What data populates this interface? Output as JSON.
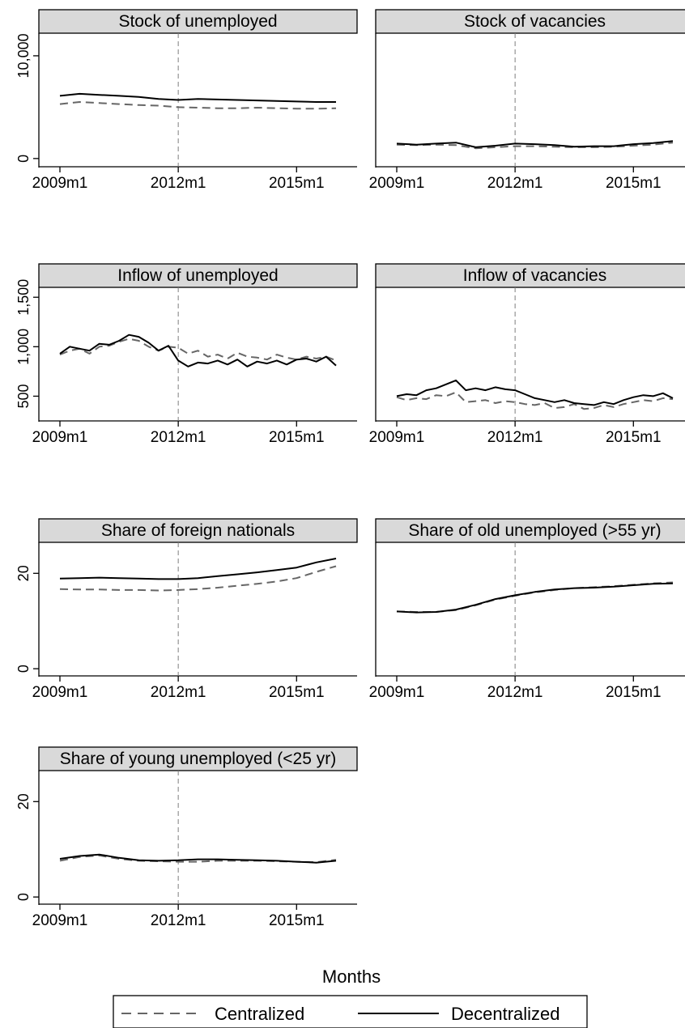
{
  "figure": {
    "xlabel": "Months",
    "legend_position": "bottom",
    "legend": [
      {
        "label": "Centralized",
        "style": "dashed",
        "color": "#666666"
      },
      {
        "label": "Decentralized",
        "style": "solid",
        "color": "#000000"
      }
    ],
    "reference_line_at": "2012m1",
    "colors": {
      "header_fill": "#d9d9d9",
      "reference_line": "#7f7f7f"
    }
  },
  "chart_data": [
    {
      "type": "line",
      "title": "Stock of unemployed",
      "x_ticks": [
        "2009m1",
        "2012m1",
        "2015m1"
      ],
      "xlim": [
        "2009m1",
        "2016m1"
      ],
      "y_ticks": [
        {
          "value": 0,
          "label": "0"
        },
        {
          "value": 10000,
          "label": "10,000"
        }
      ],
      "ylim": [
        -800,
        12200
      ],
      "series": [
        {
          "name": "Centralized",
          "style": "dashed",
          "x": [
            "2009m1",
            "2009m7",
            "2010m1",
            "2010m7",
            "2011m1",
            "2011m7",
            "2012m1",
            "2012m7",
            "2013m1",
            "2013m7",
            "2014m1",
            "2014m7",
            "2015m1",
            "2015m7",
            "2016m1"
          ],
          "values": [
            5300,
            5500,
            5400,
            5300,
            5200,
            5150,
            5000,
            4950,
            4900,
            4900,
            4950,
            4900,
            4850,
            4850,
            4900
          ]
        },
        {
          "name": "Decentralized",
          "style": "solid",
          "x": [
            "2009m1",
            "2009m7",
            "2010m1",
            "2010m7",
            "2011m1",
            "2011m7",
            "2012m1",
            "2012m7",
            "2013m1",
            "2013m7",
            "2014m1",
            "2014m7",
            "2015m1",
            "2015m7",
            "2016m1"
          ],
          "values": [
            6100,
            6300,
            6200,
            6100,
            6000,
            5800,
            5700,
            5800,
            5750,
            5700,
            5650,
            5600,
            5550,
            5500,
            5500
          ]
        }
      ]
    },
    {
      "type": "line",
      "title": "Stock of vacancies",
      "x_ticks": [
        "2009m1",
        "2012m1",
        "2015m1"
      ],
      "xlim": [
        "2009m1",
        "2016m1"
      ],
      "y_ticks": [],
      "ylim": [
        -800,
        12200
      ],
      "series": [
        {
          "name": "Centralized",
          "style": "dashed",
          "x": [
            "2009m1",
            "2009m7",
            "2010m1",
            "2010m7",
            "2011m1",
            "2011m7",
            "2012m1",
            "2012m7",
            "2013m1",
            "2013m7",
            "2014m1",
            "2014m7",
            "2015m1",
            "2015m7",
            "2016m1"
          ],
          "values": [
            1350,
            1300,
            1350,
            1300,
            1000,
            1100,
            1200,
            1200,
            1150,
            1100,
            1100,
            1150,
            1250,
            1350,
            1550
          ]
        },
        {
          "name": "Decentralized",
          "style": "solid",
          "x": [
            "2009m1",
            "2009m7",
            "2010m1",
            "2010m7",
            "2011m1",
            "2011m7",
            "2012m1",
            "2012m7",
            "2013m1",
            "2013m7",
            "2014m1",
            "2014m7",
            "2015m1",
            "2015m7",
            "2016m1"
          ],
          "values": [
            1450,
            1350,
            1450,
            1550,
            1100,
            1250,
            1450,
            1400,
            1300,
            1150,
            1200,
            1200,
            1400,
            1500,
            1700
          ]
        }
      ]
    },
    {
      "type": "line",
      "title": "Inflow of unemployed",
      "x_ticks": [
        "2009m1",
        "2012m1",
        "2015m1"
      ],
      "xlim": [
        "2009m1",
        "2016m1"
      ],
      "y_ticks": [
        {
          "value": 500,
          "label": "500"
        },
        {
          "value": 1000,
          "label": "1,000"
        },
        {
          "value": 1500,
          "label": "1,500"
        }
      ],
      "ylim": [
        250,
        1600
      ],
      "series": [
        {
          "name": "Centralized",
          "style": "dashed",
          "x": [
            "2009m1",
            "2009m4",
            "2009m7",
            "2009m10",
            "2010m1",
            "2010m4",
            "2010m7",
            "2010m10",
            "2011m1",
            "2011m4",
            "2011m7",
            "2011m10",
            "2012m1",
            "2012m4",
            "2012m7",
            "2012m10",
            "2013m1",
            "2013m4",
            "2013m7",
            "2013m10",
            "2014m1",
            "2014m4",
            "2014m7",
            "2014m10",
            "2015m1",
            "2015m4",
            "2015m7",
            "2015m10",
            "2016m1"
          ],
          "values": [
            920,
            960,
            980,
            930,
            1000,
            1010,
            1050,
            1080,
            1060,
            1000,
            960,
            1000,
            990,
            930,
            960,
            900,
            920,
            880,
            940,
            900,
            890,
            870,
            920,
            890,
            870,
            900,
            880,
            900,
            860
          ]
        },
        {
          "name": "Decentralized",
          "style": "solid",
          "x": [
            "2009m1",
            "2009m4",
            "2009m7",
            "2009m10",
            "2010m1",
            "2010m4",
            "2010m7",
            "2010m10",
            "2011m1",
            "2011m4",
            "2011m7",
            "2011m10",
            "2012m1",
            "2012m4",
            "2012m7",
            "2012m10",
            "2013m1",
            "2013m4",
            "2013m7",
            "2013m10",
            "2014m1",
            "2014m4",
            "2014m7",
            "2014m10",
            "2015m1",
            "2015m4",
            "2015m7",
            "2015m10",
            "2016m1"
          ],
          "values": [
            930,
            1000,
            980,
            960,
            1030,
            1020,
            1060,
            1120,
            1100,
            1040,
            960,
            1010,
            860,
            800,
            840,
            830,
            860,
            820,
            870,
            800,
            850,
            830,
            860,
            820,
            870,
            880,
            850,
            900,
            810
          ]
        }
      ]
    },
    {
      "type": "line",
      "title": "Inflow of vacancies",
      "x_ticks": [
        "2009m1",
        "2012m1",
        "2015m1"
      ],
      "xlim": [
        "2009m1",
        "2016m1"
      ],
      "y_ticks": [],
      "ylim": [
        250,
        1600
      ],
      "series": [
        {
          "name": "Centralized",
          "style": "dashed",
          "x": [
            "2009m1",
            "2009m4",
            "2009m7",
            "2009m10",
            "2010m1",
            "2010m4",
            "2010m7",
            "2010m10",
            "2011m1",
            "2011m4",
            "2011m7",
            "2011m10",
            "2012m1",
            "2012m4",
            "2012m7",
            "2012m10",
            "2013m1",
            "2013m4",
            "2013m7",
            "2013m10",
            "2014m1",
            "2014m4",
            "2014m7",
            "2014m10",
            "2015m1",
            "2015m4",
            "2015m7",
            "2015m10",
            "2016m1"
          ],
          "values": [
            490,
            460,
            480,
            470,
            510,
            500,
            540,
            440,
            450,
            460,
            430,
            450,
            440,
            420,
            410,
            430,
            380,
            390,
            420,
            370,
            380,
            410,
            390,
            420,
            440,
            460,
            450,
            480,
            470
          ]
        },
        {
          "name": "Decentralized",
          "style": "solid",
          "x": [
            "2009m1",
            "2009m4",
            "2009m7",
            "2009m10",
            "2010m1",
            "2010m4",
            "2010m7",
            "2010m10",
            "2011m1",
            "2011m4",
            "2011m7",
            "2011m10",
            "2012m1",
            "2012m4",
            "2012m7",
            "2012m10",
            "2013m1",
            "2013m4",
            "2013m7",
            "2013m10",
            "2014m1",
            "2014m4",
            "2014m7",
            "2014m10",
            "2015m1",
            "2015m4",
            "2015m7",
            "2015m10",
            "2016m1"
          ],
          "values": [
            500,
            520,
            510,
            560,
            580,
            620,
            660,
            560,
            580,
            560,
            590,
            570,
            560,
            520,
            480,
            460,
            440,
            460,
            430,
            420,
            410,
            440,
            420,
            460,
            490,
            510,
            500,
            530,
            480
          ]
        }
      ]
    },
    {
      "type": "line",
      "title": "Share of foreign nationals",
      "x_ticks": [
        "2009m1",
        "2012m1",
        "2015m1"
      ],
      "xlim": [
        "2009m1",
        "2016m1"
      ],
      "y_ticks": [
        {
          "value": 0,
          "label": "0"
        },
        {
          "value": 20,
          "label": "20"
        }
      ],
      "ylim": [
        -1.5,
        26.5
      ],
      "series": [
        {
          "name": "Centralized",
          "style": "dashed",
          "x": [
            "2009m1",
            "2009m7",
            "2010m1",
            "2010m7",
            "2011m1",
            "2011m7",
            "2012m1",
            "2012m7",
            "2013m1",
            "2013m7",
            "2014m1",
            "2014m7",
            "2015m1",
            "2015m7",
            "2016m1"
          ],
          "values": [
            16.7,
            16.6,
            16.6,
            16.5,
            16.5,
            16.4,
            16.5,
            16.7,
            17.0,
            17.4,
            17.8,
            18.3,
            19.0,
            20.3,
            21.5
          ]
        },
        {
          "name": "Decentralized",
          "style": "solid",
          "x": [
            "2009m1",
            "2009m7",
            "2010m1",
            "2010m7",
            "2011m1",
            "2011m7",
            "2012m1",
            "2012m7",
            "2013m1",
            "2013m7",
            "2014m1",
            "2014m7",
            "2015m1",
            "2015m7",
            "2016m1"
          ],
          "values": [
            18.9,
            19.0,
            19.1,
            19.0,
            18.9,
            18.8,
            18.8,
            19.0,
            19.4,
            19.8,
            20.2,
            20.7,
            21.2,
            22.3,
            23.1
          ]
        }
      ]
    },
    {
      "type": "line",
      "title": "Share of old unemployed (>55 yr)",
      "x_ticks": [
        "2009m1",
        "2012m1",
        "2015m1"
      ],
      "xlim": [
        "2009m1",
        "2016m1"
      ],
      "y_ticks": [],
      "ylim": [
        -1.5,
        26.5
      ],
      "series": [
        {
          "name": "Centralized",
          "style": "dashed",
          "x": [
            "2009m1",
            "2009m7",
            "2010m1",
            "2010m7",
            "2011m1",
            "2011m7",
            "2012m1",
            "2012m7",
            "2013m1",
            "2013m7",
            "2014m1",
            "2014m7",
            "2015m1",
            "2015m7",
            "2016m1"
          ],
          "values": [
            12.0,
            11.9,
            11.9,
            12.3,
            13.3,
            14.5,
            15.3,
            16.0,
            16.5,
            16.9,
            17.1,
            17.3,
            17.6,
            17.9,
            18.1
          ]
        },
        {
          "name": "Decentralized",
          "style": "solid",
          "x": [
            "2009m1",
            "2009m7",
            "2010m1",
            "2010m7",
            "2011m1",
            "2011m7",
            "2012m1",
            "2012m7",
            "2013m1",
            "2013m7",
            "2014m1",
            "2014m7",
            "2015m1",
            "2015m7",
            "2016m1"
          ],
          "values": [
            12.0,
            11.8,
            11.9,
            12.4,
            13.4,
            14.6,
            15.4,
            16.1,
            16.6,
            16.9,
            17.0,
            17.2,
            17.5,
            17.8,
            17.9
          ]
        }
      ]
    },
    {
      "type": "line",
      "title": "Share of young unemployed (<25 yr)",
      "x_ticks": [
        "2009m1",
        "2012m1",
        "2015m1"
      ],
      "xlim": [
        "2009m1",
        "2016m1"
      ],
      "y_ticks": [
        {
          "value": 0,
          "label": "0"
        },
        {
          "value": 20,
          "label": "20"
        }
      ],
      "ylim": [
        -1.5,
        26.5
      ],
      "series": [
        {
          "name": "Centralized",
          "style": "dashed",
          "x": [
            "2009m1",
            "2009m7",
            "2010m1",
            "2010m7",
            "2011m1",
            "2011m7",
            "2012m1",
            "2012m7",
            "2013m1",
            "2013m7",
            "2014m1",
            "2014m7",
            "2015m1",
            "2015m7",
            "2016m1"
          ],
          "values": [
            7.6,
            8.4,
            8.7,
            8.0,
            7.6,
            7.5,
            7.4,
            7.4,
            7.6,
            7.6,
            7.6,
            7.5,
            7.4,
            7.3,
            7.8
          ]
        },
        {
          "name": "Decentralized",
          "style": "solid",
          "x": [
            "2009m1",
            "2009m7",
            "2010m1",
            "2010m7",
            "2011m1",
            "2011m7",
            "2012m1",
            "2012m7",
            "2013m1",
            "2013m7",
            "2014m1",
            "2014m7",
            "2015m1",
            "2015m7",
            "2016m1"
          ],
          "values": [
            8.0,
            8.6,
            8.9,
            8.2,
            7.7,
            7.6,
            7.7,
            7.9,
            7.9,
            7.8,
            7.7,
            7.6,
            7.4,
            7.2,
            7.6
          ]
        }
      ]
    }
  ]
}
